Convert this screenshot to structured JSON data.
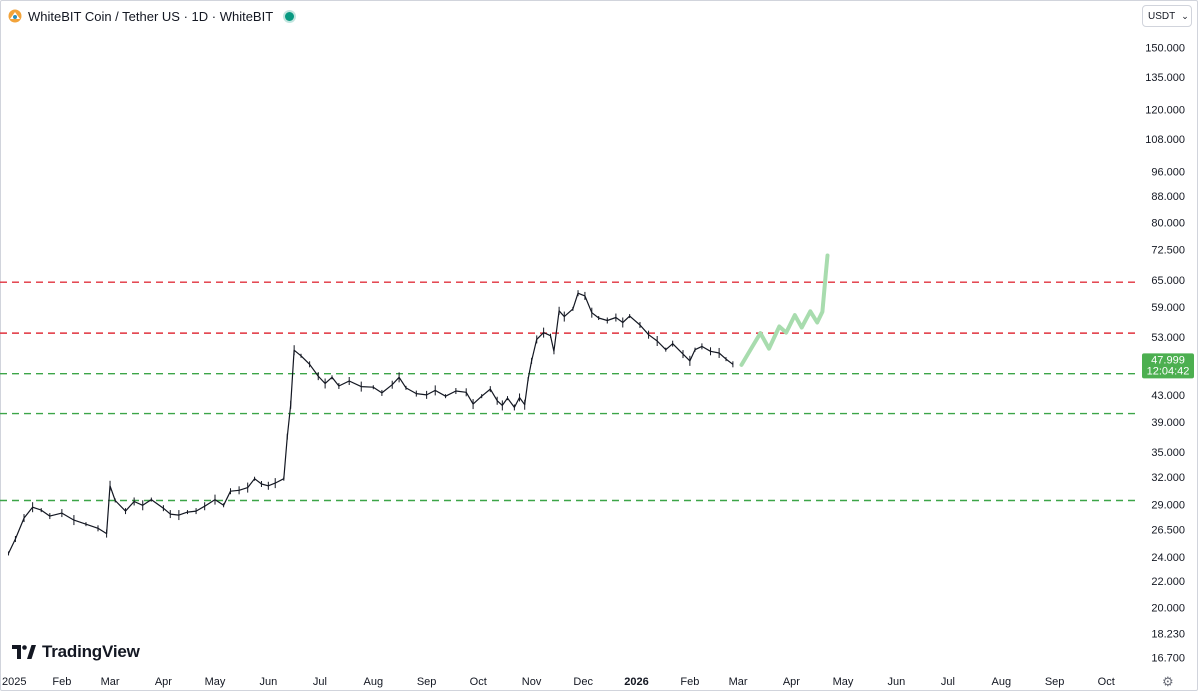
{
  "header": {
    "title": "WhiteBIT Coin / Tether US · 1D · WhiteBIT",
    "currency": "USDT",
    "brand": "TradingView"
  },
  "colors": {
    "resistance": "#e0313c",
    "support": "#3ca548",
    "projection": "#a8dcae",
    "price_tag": "#4caf50",
    "candles": "#131722"
  },
  "chart_data": {
    "type": "line",
    "title": "WhiteBIT Coin / Tether US · 1D · WhiteBIT",
    "y_scale": "log",
    "ylim": [
      16.0,
      165.0
    ],
    "y_ticks": [
      "150.000",
      "135.000",
      "120.000",
      "108.000",
      "96.000",
      "88.000",
      "80.000",
      "72.500",
      "65.000",
      "59.000",
      "53.000",
      "48.000",
      "43.000",
      "39.000",
      "35.000",
      "32.000",
      "29.000",
      "26.500",
      "24.000",
      "22.000",
      "20.000",
      "18.230",
      "16.700"
    ],
    "x_ticks": [
      {
        "label": "2025",
        "date": "2025-01-01"
      },
      {
        "label": "Feb",
        "date": "2025-02-01"
      },
      {
        "label": "Mar",
        "date": "2025-03-01"
      },
      {
        "label": "Apr",
        "date": "2025-04-01"
      },
      {
        "label": "May",
        "date": "2025-05-01"
      },
      {
        "label": "Jun",
        "date": "2025-06-01"
      },
      {
        "label": "Jul",
        "date": "2025-07-01"
      },
      {
        "label": "Aug",
        "date": "2025-08-01"
      },
      {
        "label": "Sep",
        "date": "2025-09-01"
      },
      {
        "label": "Oct",
        "date": "2025-10-01"
      },
      {
        "label": "Nov",
        "date": "2025-11-01"
      },
      {
        "label": "Dec",
        "date": "2025-12-01"
      },
      {
        "label": "2026",
        "date": "2026-01-01",
        "bold": true
      },
      {
        "label": "Feb",
        "date": "2026-02-01"
      },
      {
        "label": "Mar",
        "date": "2026-03-01"
      },
      {
        "label": "Apr",
        "date": "2026-04-01"
      },
      {
        "label": "May",
        "date": "2026-05-01"
      },
      {
        "label": "Jun",
        "date": "2026-06-01"
      },
      {
        "label": "Jul",
        "date": "2026-07-01"
      },
      {
        "label": "Aug",
        "date": "2026-08-01"
      },
      {
        "label": "Sep",
        "date": "2026-09-01"
      },
      {
        "label": "Oct",
        "date": "2026-10-01"
      }
    ],
    "series": [
      {
        "kind": "price",
        "points": [
          [
            "2025-01-01",
            24.3
          ],
          [
            "2025-01-05",
            25.6
          ],
          [
            "2025-01-10",
            27.6
          ],
          [
            "2025-01-15",
            28.7
          ],
          [
            "2025-01-20",
            28.4
          ],
          [
            "2025-01-25",
            27.8
          ],
          [
            "2025-02-01",
            28.1
          ],
          [
            "2025-02-08",
            27.4
          ],
          [
            "2025-02-15",
            27.0
          ],
          [
            "2025-02-22",
            26.6
          ],
          [
            "2025-02-27",
            26.1
          ],
          [
            "2025-03-01",
            31.0
          ],
          [
            "2025-03-04",
            29.4
          ],
          [
            "2025-03-10",
            28.3
          ],
          [
            "2025-03-15",
            29.3
          ],
          [
            "2025-03-20",
            28.9
          ],
          [
            "2025-03-25",
            29.5
          ],
          [
            "2025-04-01",
            28.6
          ],
          [
            "2025-04-05",
            28.0
          ],
          [
            "2025-04-10",
            27.9
          ],
          [
            "2025-04-15",
            28.2
          ],
          [
            "2025-04-20",
            28.3
          ],
          [
            "2025-04-25",
            28.8
          ],
          [
            "2025-05-01",
            29.5
          ],
          [
            "2025-05-06",
            28.9
          ],
          [
            "2025-05-10",
            30.4
          ],
          [
            "2025-05-15",
            30.5
          ],
          [
            "2025-05-20",
            30.8
          ],
          [
            "2025-05-24",
            31.8
          ],
          [
            "2025-05-28",
            31.2
          ],
          [
            "2025-06-01",
            31.0
          ],
          [
            "2025-06-05",
            31.3
          ],
          [
            "2025-06-10",
            31.8
          ],
          [
            "2025-06-12",
            37.0
          ],
          [
            "2025-06-14",
            41.5
          ],
          [
            "2025-06-16",
            50.5
          ],
          [
            "2025-06-20",
            49.5
          ],
          [
            "2025-06-25",
            48.0
          ],
          [
            "2025-06-30",
            46.0
          ],
          [
            "2025-07-04",
            44.8
          ],
          [
            "2025-07-08",
            45.8
          ],
          [
            "2025-07-12",
            44.4
          ],
          [
            "2025-07-18",
            45.2
          ],
          [
            "2025-07-25",
            44.3
          ],
          [
            "2025-08-01",
            44.2
          ],
          [
            "2025-08-06",
            43.3
          ],
          [
            "2025-08-12",
            44.6
          ],
          [
            "2025-08-16",
            45.8
          ],
          [
            "2025-08-20",
            44.1
          ],
          [
            "2025-08-26",
            43.2
          ],
          [
            "2025-09-01",
            43.0
          ],
          [
            "2025-09-06",
            43.7
          ],
          [
            "2025-09-12",
            42.8
          ],
          [
            "2025-09-18",
            43.6
          ],
          [
            "2025-09-24",
            43.4
          ],
          [
            "2025-09-28",
            41.6
          ],
          [
            "2025-10-03",
            42.8
          ],
          [
            "2025-10-08",
            43.9
          ],
          [
            "2025-10-12",
            42.1
          ],
          [
            "2025-10-15",
            41.4
          ],
          [
            "2025-10-18",
            42.5
          ],
          [
            "2025-10-22",
            41.1
          ],
          [
            "2025-10-25",
            42.6
          ],
          [
            "2025-10-28",
            41.5
          ],
          [
            "2025-10-30",
            45.5
          ],
          [
            "2025-11-01",
            48.6
          ],
          [
            "2025-11-04",
            52.5
          ],
          [
            "2025-11-08",
            53.8
          ],
          [
            "2025-11-12",
            53.2
          ],
          [
            "2025-11-14",
            50.3
          ],
          [
            "2025-11-17",
            58.2
          ],
          [
            "2025-11-20",
            57.0
          ],
          [
            "2025-11-25",
            58.6
          ],
          [
            "2025-11-28",
            62.0
          ],
          [
            "2025-12-02",
            61.4
          ],
          [
            "2025-12-06",
            57.8
          ],
          [
            "2025-12-10",
            56.7
          ],
          [
            "2025-12-15",
            56.2
          ],
          [
            "2025-12-20",
            56.8
          ],
          [
            "2025-12-24",
            55.8
          ],
          [
            "2025-12-28",
            57.1
          ],
          [
            "2026-01-03",
            55.3
          ],
          [
            "2026-01-08",
            53.4
          ],
          [
            "2026-01-13",
            52.2
          ],
          [
            "2026-01-18",
            50.6
          ],
          [
            "2026-01-22",
            51.7
          ],
          [
            "2026-01-28",
            49.8
          ],
          [
            "2026-02-01",
            48.6
          ],
          [
            "2026-02-04",
            50.6
          ],
          [
            "2026-02-08",
            51.2
          ],
          [
            "2026-02-13",
            50.3
          ],
          [
            "2026-02-18",
            50.0
          ],
          [
            "2026-02-22",
            48.9
          ],
          [
            "2026-02-26",
            48.0
          ]
        ]
      },
      {
        "kind": "projection",
        "points": [
          [
            "2026-03-03",
            47.9
          ],
          [
            "2026-03-09",
            51.0
          ],
          [
            "2026-03-14",
            53.7
          ],
          [
            "2026-03-19",
            50.8
          ],
          [
            "2026-03-25",
            55.0
          ],
          [
            "2026-03-29",
            53.8
          ],
          [
            "2026-04-03",
            57.3
          ],
          [
            "2026-04-07",
            54.8
          ],
          [
            "2026-04-12",
            58.1
          ],
          [
            "2026-04-16",
            55.8
          ],
          [
            "2026-04-19",
            58.0
          ],
          [
            "2026-04-21",
            66.5
          ],
          [
            "2026-04-22",
            71.0
          ]
        ]
      }
    ],
    "horizontal_lines": [
      {
        "value": 64.5,
        "color": "#e0313c",
        "style": "dashed"
      },
      {
        "value": 53.7,
        "color": "#e0313c",
        "style": "dashed"
      },
      {
        "value": 46.4,
        "color": "#3ca548",
        "style": "dashed"
      },
      {
        "value": 40.2,
        "color": "#3ca548",
        "style": "dashed"
      },
      {
        "value": 29.4,
        "color": "#3ca548",
        "style": "dashed"
      }
    ],
    "last_price": {
      "value": "47.999",
      "countdown": "12:04:42"
    },
    "grid": false,
    "legend": "none"
  }
}
